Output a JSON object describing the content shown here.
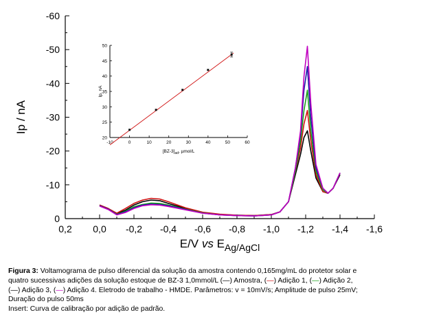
{
  "chart_data": [
    {
      "type": "line",
      "title": "",
      "xlabel": "E/V vs E_Ag/AgCl",
      "xlabel_parts": {
        "main": "E/V ",
        "italic": "vs",
        "sub_e": "E",
        "sub": "Ag/AgCl"
      },
      "ylabel": "Ip / nA",
      "xlim": [
        0.2,
        -1.6
      ],
      "ylim": [
        0,
        -60
      ],
      "x_ticks": [
        "0,2",
        "0,0",
        "-0,2",
        "-0,4",
        "-0,6",
        "-0,8",
        "-1,0",
        "-1,2",
        "-1,4",
        "-1,6"
      ],
      "x_tick_values": [
        0.2,
        0.0,
        -0.2,
        -0.4,
        -0.6,
        -0.8,
        -1.0,
        -1.2,
        -1.4,
        -1.6
      ],
      "y_ticks": [
        "0",
        "-10",
        "-20",
        "-30",
        "-40",
        "-50",
        "-60"
      ],
      "y_tick_values": [
        0,
        -10,
        -20,
        -30,
        -40,
        -50,
        -60
      ],
      "series": [
        {
          "name": "Amostra",
          "color": "#000000",
          "peak": -26,
          "x": [
            0.0,
            -0.05,
            -0.1,
            -0.15,
            -0.2,
            -0.25,
            -0.3,
            -0.35,
            -0.4,
            -0.5,
            -0.6,
            -0.7,
            -0.8,
            -0.9,
            -1.0,
            -1.05,
            -1.1,
            -1.14,
            -1.17,
            -1.19,
            -1.21,
            -1.23,
            -1.26,
            -1.3,
            -1.33,
            -1.36,
            -1.4
          ],
          "y": [
            -4,
            -3,
            -1.5,
            -2.5,
            -4,
            -5,
            -5.5,
            -5.3,
            -4.5,
            -3,
            -1.8,
            -1.2,
            -1,
            -0.9,
            -1.2,
            -2,
            -5,
            -13,
            -19,
            -24,
            -26,
            -20,
            -12,
            -8,
            -7.5,
            -9,
            -13
          ]
        },
        {
          "name": "Adição 1",
          "color": "#d01010",
          "peak": -32,
          "x": [
            0.0,
            -0.05,
            -0.1,
            -0.15,
            -0.2,
            -0.25,
            -0.3,
            -0.35,
            -0.4,
            -0.5,
            -0.6,
            -0.7,
            -0.8,
            -0.9,
            -1.0,
            -1.05,
            -1.1,
            -1.14,
            -1.17,
            -1.19,
            -1.21,
            -1.23,
            -1.26,
            -1.3,
            -1.33,
            -1.36,
            -1.4
          ],
          "y": [
            -4,
            -3,
            -1.6,
            -3,
            -4.5,
            -5.5,
            -6,
            -5.8,
            -5,
            -3.2,
            -1.9,
            -1.3,
            -1,
            -0.9,
            -1.2,
            -2,
            -5,
            -14,
            -21,
            -28,
            -32,
            -23,
            -13,
            -8,
            -7.5,
            -9,
            -13.5
          ]
        },
        {
          "name": "Adição 2",
          "color": "#18a018",
          "peak": -38,
          "x": [
            0.0,
            -0.05,
            -0.1,
            -0.15,
            -0.2,
            -0.25,
            -0.3,
            -0.35,
            -0.4,
            -0.5,
            -0.6,
            -0.7,
            -0.8,
            -0.9,
            -1.0,
            -1.05,
            -1.1,
            -1.14,
            -1.17,
            -1.19,
            -1.21,
            -1.23,
            -1.26,
            -1.3,
            -1.33,
            -1.36,
            -1.4
          ],
          "y": [
            -3.8,
            -2.8,
            -1.3,
            -2.2,
            -3.5,
            -4.2,
            -4.6,
            -4.5,
            -4,
            -2.8,
            -1.7,
            -1.1,
            -0.9,
            -0.8,
            -1.1,
            -2,
            -5,
            -14,
            -23,
            -32,
            -38,
            -26,
            -14,
            -8.5,
            -7.5,
            -9,
            -13.5
          ]
        },
        {
          "name": "Adição 3",
          "color": "#1a1aa8",
          "peak": -45,
          "x": [
            0.0,
            -0.05,
            -0.1,
            -0.15,
            -0.2,
            -0.25,
            -0.3,
            -0.35,
            -0.4,
            -0.5,
            -0.6,
            -0.7,
            -0.8,
            -0.9,
            -1.0,
            -1.05,
            -1.1,
            -1.14,
            -1.17,
            -1.19,
            -1.21,
            -1.23,
            -1.26,
            -1.3,
            -1.33,
            -1.36,
            -1.4
          ],
          "y": [
            -3.8,
            -2.8,
            -1.2,
            -2,
            -3.2,
            -4,
            -4.3,
            -4.2,
            -3.8,
            -2.7,
            -1.6,
            -1.1,
            -0.9,
            -0.8,
            -1.1,
            -2,
            -5,
            -15,
            -25,
            -38,
            -45,
            -30,
            -15,
            -9,
            -7.5,
            -9,
            -13.5
          ]
        },
        {
          "name": "Adição 4",
          "color": "#c000c0",
          "peak": -51,
          "x": [
            0.0,
            -0.05,
            -0.1,
            -0.15,
            -0.2,
            -0.25,
            -0.3,
            -0.35,
            -0.4,
            -0.5,
            -0.6,
            -0.7,
            -0.8,
            -0.9,
            -1.0,
            -1.05,
            -1.1,
            -1.14,
            -1.17,
            -1.19,
            -1.21,
            -1.23,
            -1.26,
            -1.3,
            -1.33,
            -1.36,
            -1.4
          ],
          "y": [
            -3.7,
            -2.7,
            -1.1,
            -1.8,
            -3,
            -3.8,
            -4.1,
            -4,
            -3.6,
            -2.6,
            -1.6,
            -1.1,
            -0.9,
            -0.8,
            -1.1,
            -2,
            -5,
            -15,
            -26,
            -42,
            -51,
            -34,
            -16,
            -9,
            -7.5,
            -9,
            -13.5
          ]
        }
      ]
    },
    {
      "type": "scatter",
      "title": "",
      "xlabel": "[BZ-3]",
      "xlabel_sub": "ad",
      "xlabel_unit": ", µmol/L",
      "ylabel": "Ip, nA",
      "xlim": [
        -10,
        60
      ],
      "ylim": [
        20,
        50
      ],
      "x_ticks": [
        "-10",
        "0",
        "10",
        "20",
        "30",
        "40",
        "50",
        "60"
      ],
      "x_tick_values": [
        -10,
        0,
        10,
        20,
        30,
        40,
        50,
        60
      ],
      "y_ticks": [
        "20",
        "25",
        "30",
        "35",
        "40",
        "45",
        "50"
      ],
      "y_tick_values": [
        20,
        25,
        30,
        35,
        40,
        45,
        50
      ],
      "points": {
        "x": [
          0,
          13.5,
          27,
          40,
          52
        ],
        "y": [
          22.5,
          29,
          35.5,
          42,
          47
        ]
      },
      "fit_line": {
        "x": [
          -10,
          53
        ],
        "y": [
          17.6,
          47.5
        ],
        "color": "#d01010"
      }
    }
  ],
  "caption": {
    "label": "Figura 3:",
    "line1_text": " Voltamograma de pulso diferencial da solução da amostra contendo 0,165mg/mL do protetor solar e",
    "line2_text": "quatro sucessivas adições da solução estoque de BZ-3 1,0mmol/L",
    "amostra": "Amostra,",
    "adicao1": "Adição 1,",
    "adicao2": "Adição 2,",
    "adicao3": "Adição 3,",
    "line3_rest": "Adição 4. Eletrodo de trabalho - HMDE. Parâmetros: v = 10mV/s; Amplitude de pulso 25mV;",
    "line4": "Duração do pulso 50ms",
    "line5": "Insert: Curva de calibração por adição de padrão.",
    "dash": "—"
  }
}
